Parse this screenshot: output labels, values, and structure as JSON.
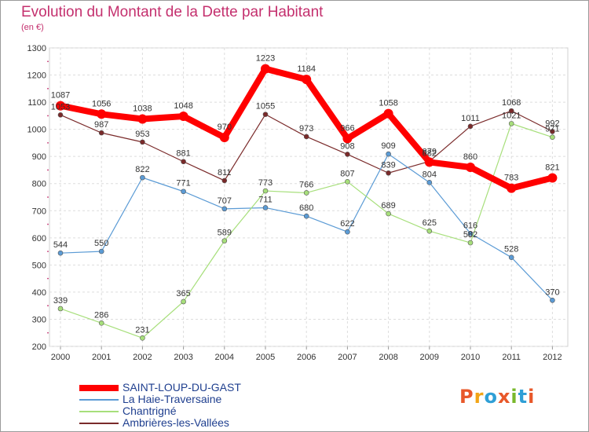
{
  "title": "Evolution du Montant de la Dette par Habitant",
  "subtitle": "(en €)",
  "logo": {
    "text": "Proxiti",
    "colors": [
      "#e8582a",
      "#f2a516",
      "#2f9fd6",
      "#e8582a",
      "#79b82c",
      "#2f9fd6",
      "#e8582a"
    ]
  },
  "chart_data": {
    "type": "line",
    "x": [
      "2000",
      "2001",
      "2002",
      "2003",
      "2004",
      "2005",
      "2006",
      "2007",
      "2008",
      "2009",
      "2010",
      "2011",
      "2012"
    ],
    "yticks": [
      "200",
      "300",
      "400",
      "500",
      "600",
      "700",
      "800",
      "900",
      "1000",
      "1100",
      "1200",
      "1300"
    ],
    "ylim": [
      200,
      1300
    ],
    "grid": true,
    "legend_position": "bottom-left",
    "series": [
      {
        "name": "Ambrières-les-Vallées",
        "color": "#7a2a2a",
        "width": 1.2,
        "marker": 3,
        "values": [
          1053,
          987,
          953,
          881,
          811,
          1055,
          973,
          908,
          839,
          882,
          1011,
          1068,
          992
        ],
        "labels": [
          "1053",
          "987",
          "953",
          "881",
          "811",
          "1055",
          "973",
          "908",
          "839",
          "882",
          "1011",
          "1068",
          "992"
        ]
      },
      {
        "name": "La Haie-Traversaine",
        "color": "#5b9bd5",
        "width": 1.2,
        "marker": 3,
        "values": [
          544,
          550,
          822,
          771,
          707,
          711,
          680,
          622,
          909,
          804,
          616,
          528,
          370
        ],
        "labels": [
          "544",
          "550",
          "822",
          "771",
          "707",
          "711",
          "680",
          "622",
          "909",
          "804",
          "616",
          "528",
          "370"
        ]
      },
      {
        "name": "Chantrigné",
        "color": "#a7df7b",
        "width": 1.2,
        "marker": 3,
        "values": [
          339,
          286,
          231,
          365,
          589,
          773,
          766,
          807,
          689,
          625,
          582,
          1021,
          971
        ],
        "labels": [
          "339",
          "286",
          "231",
          "365",
          "589",
          "773",
          "766",
          "807",
          "689",
          "625",
          "582",
          "1021",
          "971"
        ]
      },
      {
        "name": "SAINT-LOUP-DU-GAST",
        "color": "#ff0000",
        "width": 8,
        "marker": 6,
        "values": [
          1087,
          1056,
          1038,
          1048,
          970,
          1223,
          1184,
          966,
          1058,
          879,
          860,
          783,
          821
        ],
        "labels": [
          "1087",
          "1056",
          "1038",
          "1048",
          "970",
          "1223",
          "1184",
          "966",
          "1058",
          "879",
          "860",
          "783",
          "821"
        ]
      }
    ],
    "legend": [
      {
        "name": "SAINT-LOUP-DU-GAST",
        "color": "#ff0000",
        "width": 8
      },
      {
        "name": "La Haie-Traversaine",
        "color": "#5b9bd5",
        "width": 2
      },
      {
        "name": "Chantrigné",
        "color": "#a7df7b",
        "width": 2
      },
      {
        "name": "Ambrières-les-Vallées",
        "color": "#7a2a2a",
        "width": 2
      }
    ]
  }
}
